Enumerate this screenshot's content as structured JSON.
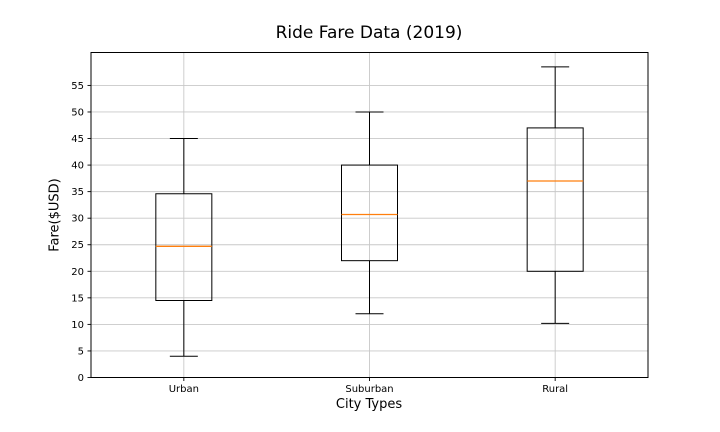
{
  "chart_data": {
    "type": "boxplot",
    "title": "Ride Fare Data (2019)",
    "xlabel": "City Types",
    "ylabel": "Fare($USD)",
    "categories": [
      "Urban",
      "Suburban",
      "Rural"
    ],
    "y_ticks": [
      0,
      5,
      10,
      15,
      20,
      25,
      30,
      35,
      40,
      45,
      50,
      55
    ],
    "ylim": [
      0,
      61.2
    ],
    "grid": true,
    "legend": "none",
    "series": [
      {
        "category": "Urban",
        "whisker_low": 4,
        "q1": 14.5,
        "median": 24.7,
        "q3": 34.6,
        "whisker_high": 45
      },
      {
        "category": "Suburban",
        "whisker_low": 12,
        "q1": 22,
        "median": 30.7,
        "q3": 40,
        "whisker_high": 50
      },
      {
        "category": "Rural",
        "whisker_low": 10.2,
        "q1": 20,
        "median": 37,
        "q3": 47,
        "whisker_high": 58.5
      }
    ],
    "colors": {
      "box_line": "#000000",
      "median_line": "#ff7f0e",
      "grid_line": "#c8c8c8",
      "spine": "#000000",
      "text": "#000000",
      "background": "#ffffff"
    }
  }
}
